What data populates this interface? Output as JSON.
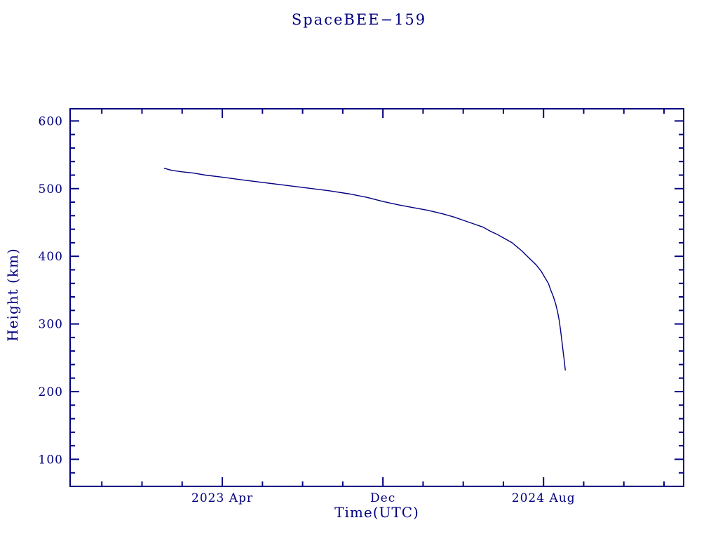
{
  "page": {
    "background": "#ffffff",
    "accent_color": "#000080"
  },
  "chart_data": {
    "type": "line",
    "title": "SpaceBEE−159",
    "xlabel": "Time(UTC)",
    "ylabel": "Height (km)",
    "color": "#000080",
    "x_unit": "decimal_year",
    "xlim": [
      2022.66,
      2025.2
    ],
    "ylim": [
      60,
      618
    ],
    "grid": false,
    "legend": "none",
    "yticks": {
      "major_step": 100,
      "minor_step": 20,
      "labels": [
        100,
        200,
        300,
        400,
        500,
        600
      ]
    },
    "xticks": {
      "major": [
        {
          "value": 2023.29,
          "label": "2023 Apr"
        },
        {
          "value": 2023.955,
          "label": "Dec"
        },
        {
          "value": 2024.62,
          "label": "2024 Aug"
        }
      ],
      "minor_step_years": 0.16625,
      "minors_per_major": 4
    },
    "series": [
      {
        "name": "height_km",
        "points": [
          [
            2023.05,
            530
          ],
          [
            2023.08,
            527
          ],
          [
            2023.12,
            525
          ],
          [
            2023.17,
            523
          ],
          [
            2023.22,
            520
          ],
          [
            2023.29,
            517
          ],
          [
            2023.37,
            513
          ],
          [
            2023.46,
            509
          ],
          [
            2023.55,
            505
          ],
          [
            2023.64,
            501
          ],
          [
            2023.73,
            497
          ],
          [
            2023.82,
            492
          ],
          [
            2023.89,
            487
          ],
          [
            2023.955,
            481
          ],
          [
            2024.02,
            476
          ],
          [
            2024.08,
            472
          ],
          [
            2024.14,
            468
          ],
          [
            2024.2,
            463
          ],
          [
            2024.25,
            458
          ],
          [
            2024.29,
            453
          ],
          [
            2024.33,
            448
          ],
          [
            2024.37,
            443
          ],
          [
            2024.4,
            437
          ],
          [
            2024.43,
            432
          ],
          [
            2024.46,
            426
          ],
          [
            2024.49,
            420
          ],
          [
            2024.51,
            414
          ],
          [
            2024.53,
            408
          ],
          [
            2024.55,
            401
          ],
          [
            2024.57,
            394
          ],
          [
            2024.59,
            387
          ],
          [
            2024.61,
            378
          ],
          [
            2024.625,
            369
          ],
          [
            2024.64,
            360
          ],
          [
            2024.65,
            350
          ],
          [
            2024.66,
            341
          ],
          [
            2024.67,
            330
          ],
          [
            2024.678,
            318
          ],
          [
            2024.685,
            305
          ],
          [
            2024.69,
            292
          ],
          [
            2024.695,
            278
          ],
          [
            2024.7,
            262
          ],
          [
            2024.705,
            248
          ],
          [
            2024.71,
            232
          ]
        ]
      }
    ]
  }
}
